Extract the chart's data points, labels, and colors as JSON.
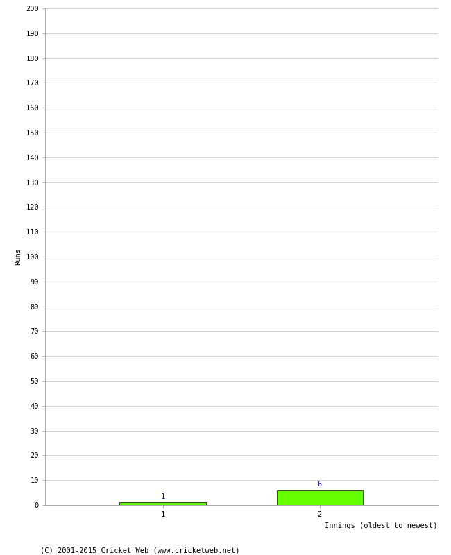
{
  "xlabel": "Innings (oldest to newest)",
  "ylabel": "Runs",
  "categories": [
    1,
    2
  ],
  "values": [
    1,
    6
  ],
  "bar_color": "#66ff00",
  "bar_edge_color": "#000000",
  "value_labels": [
    1,
    6
  ],
  "value_label_color": "#0000cc",
  "ylim": [
    0,
    200
  ],
  "yticks": [
    0,
    10,
    20,
    30,
    40,
    50,
    60,
    70,
    80,
    90,
    100,
    110,
    120,
    130,
    140,
    150,
    160,
    170,
    180,
    190,
    200
  ],
  "xticks": [
    1,
    2
  ],
  "grid_color": "#cccccc",
  "bg_color": "#ffffff",
  "footer": "(C) 2001-2015 Cricket Web (www.cricketweb.net)",
  "bar_width": 0.55
}
